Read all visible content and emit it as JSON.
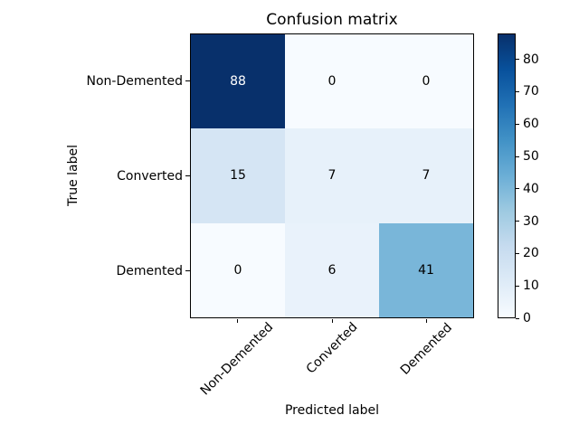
{
  "chart_data": {
    "type": "heatmap",
    "title": "Confusion matrix",
    "xlabel": "Predicted label",
    "ylabel": "True label",
    "x_categories": [
      "Non-Demented",
      "Converted",
      "Demented"
    ],
    "y_categories": [
      "Non-Demented",
      "Converted",
      "Demented"
    ],
    "matrix": [
      [
        88,
        0,
        0
      ],
      [
        15,
        7,
        7
      ],
      [
        0,
        6,
        41
      ]
    ],
    "vmin": 0,
    "vmax": 88,
    "colormap": "Blues",
    "colorbar_ticks": [
      0,
      10,
      20,
      30,
      40,
      50,
      60,
      70,
      80
    ],
    "legend_position": "right",
    "grid": false,
    "colors": {
      "cmap_low": "#f7fbff",
      "cmap_high": "#08306b",
      "figure_background": "#ffffff",
      "axis": "#000000",
      "cell_text_dark": "#000000",
      "cell_text_light": "#ffffff"
    }
  }
}
